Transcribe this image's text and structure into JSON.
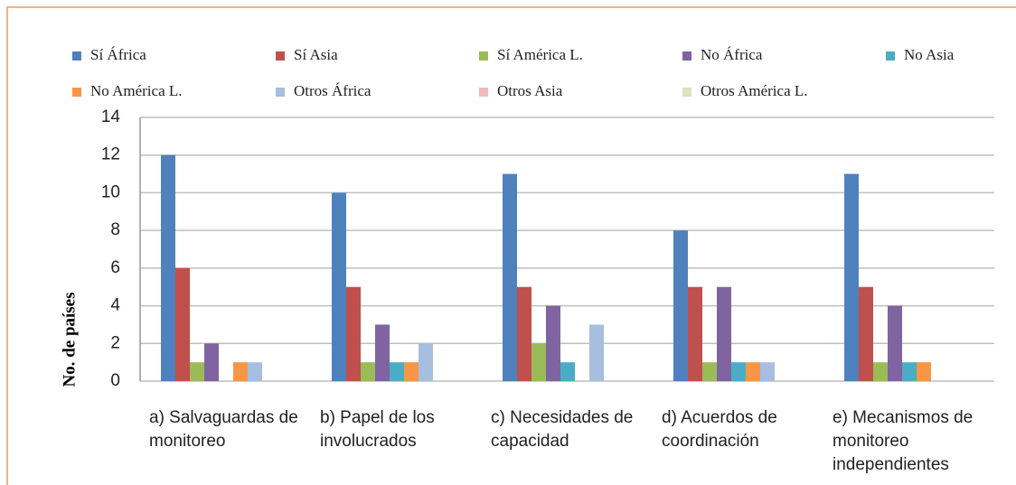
{
  "chart_data": {
    "type": "bar",
    "y_label": "No. de países",
    "categories": [
      "a) Salvaguardas de monitoreo",
      "b) Papel de los involucrados",
      "c) Necesidades de capacidad",
      "d) Acuerdos de coordinación",
      "e) Mecanismos de monitoreo independientes"
    ],
    "series": [
      {
        "name": "Sí África",
        "color": "#4f81bd",
        "values": [
          12,
          10,
          11,
          8,
          11
        ]
      },
      {
        "name": "Sí Asia",
        "color": "#c0504d",
        "values": [
          6,
          5,
          5,
          5,
          5
        ]
      },
      {
        "name": "Sí América L.",
        "color": "#9bbb59",
        "values": [
          1,
          1,
          2,
          1,
          1
        ]
      },
      {
        "name": "No África",
        "color": "#8064a2",
        "values": [
          2,
          3,
          4,
          5,
          4
        ]
      },
      {
        "name": "No Asia",
        "color": "#4bacc6",
        "values": [
          0,
          1,
          1,
          1,
          1
        ]
      },
      {
        "name": "No América L.",
        "color": "#f79646",
        "values": [
          1,
          1,
          0,
          1,
          1
        ]
      },
      {
        "name": "Otros África",
        "color": "#a7bede",
        "values": [
          1,
          2,
          3,
          1,
          0
        ]
      },
      {
        "name": "Otros Asia",
        "color": "#f2b9b9",
        "values": [
          0,
          0,
          0,
          0,
          0
        ]
      },
      {
        "name": "Otros América L.",
        "color": "#d7e4bd",
        "values": [
          0,
          0,
          0,
          0,
          0
        ]
      }
    ],
    "ylim": [
      0,
      14
    ],
    "yticks": [
      0,
      2,
      4,
      6,
      8,
      10,
      12,
      14
    ],
    "grid": true,
    "legend": "top"
  }
}
